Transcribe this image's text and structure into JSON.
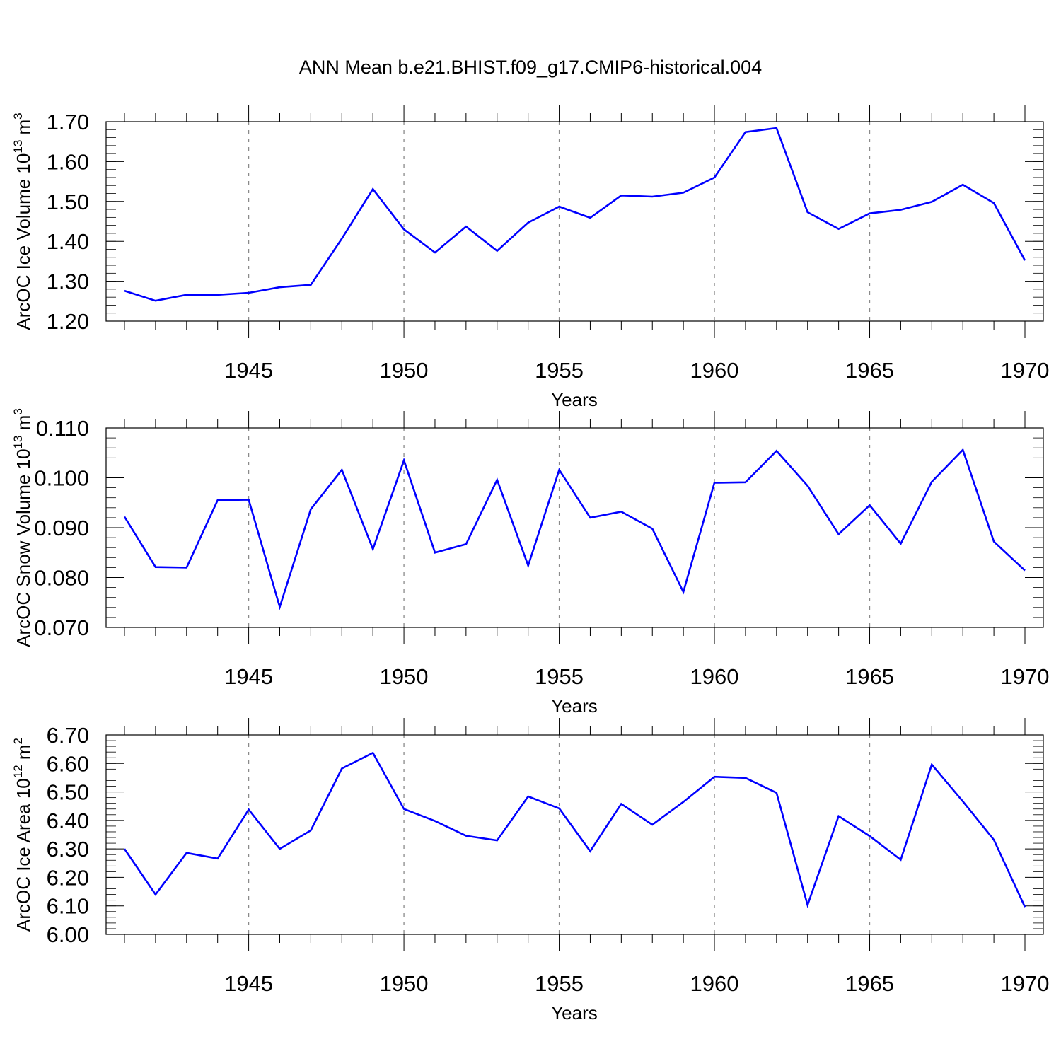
{
  "chart_data": [
    {
      "type": "line",
      "title": "ANN Mean b.e21.BHIST.f09_g17.CMIP6-historical.004",
      "ylabel": "ArcOC Ice Volume 10",
      "ylabel_exp": "13",
      "ylabel_unit": " m",
      "ylabel_unit_exp": "3",
      "xlabel": "Years",
      "xlim": [
        1941,
        1970
      ],
      "ylim": [
        1.2,
        1.7
      ],
      "yticks": [
        "1.20",
        "1.30",
        "1.40",
        "1.50",
        "1.60",
        "1.70"
      ],
      "xticks": [
        "1945",
        "1950",
        "1955",
        "1960",
        "1965",
        "1970"
      ],
      "grid": "vertical dashed at major x ticks",
      "line_color": "#0000ff",
      "x": [
        1941,
        1942,
        1943,
        1944,
        1945,
        1946,
        1947,
        1948,
        1949,
        1950,
        1951,
        1952,
        1953,
        1954,
        1955,
        1956,
        1957,
        1958,
        1959,
        1960,
        1961,
        1962,
        1963,
        1964,
        1965,
        1966,
        1967,
        1968,
        1969,
        1970
      ],
      "values": [
        1.276,
        1.251,
        1.266,
        1.266,
        1.271,
        1.285,
        1.291,
        1.407,
        1.531,
        1.43,
        1.372,
        1.437,
        1.376,
        1.447,
        1.487,
        1.459,
        1.515,
        1.512,
        1.522,
        1.56,
        1.674,
        1.684,
        1.473,
        1.431,
        1.47,
        1.479,
        1.499,
        1.542,
        1.496,
        1.352
      ]
    },
    {
      "type": "line",
      "title": "",
      "ylabel": "ArcOC Snow Volume 10",
      "ylabel_exp": "13",
      "ylabel_unit": " m",
      "ylabel_unit_exp": "3",
      "xlabel": "Years",
      "xlim": [
        1941,
        1970
      ],
      "ylim": [
        0.07,
        0.11
      ],
      "yticks": [
        "0.070",
        "0.080",
        "0.090",
        "0.100",
        "0.110"
      ],
      "xticks": [
        "1945",
        "1950",
        "1955",
        "1960",
        "1965",
        "1970"
      ],
      "grid": "vertical dashed at major x ticks",
      "line_color": "#0000ff",
      "x": [
        1941,
        1942,
        1943,
        1944,
        1945,
        1946,
        1947,
        1948,
        1949,
        1950,
        1951,
        1952,
        1953,
        1954,
        1955,
        1956,
        1957,
        1958,
        1959,
        1960,
        1961,
        1962,
        1963,
        1964,
        1965,
        1966,
        1967,
        1968,
        1969,
        1970
      ],
      "values": [
        0.0922,
        0.0821,
        0.082,
        0.0955,
        0.0956,
        0.0741,
        0.0937,
        0.1016,
        0.0857,
        0.1035,
        0.085,
        0.0867,
        0.0996,
        0.0824,
        0.1016,
        0.092,
        0.0932,
        0.0898,
        0.0771,
        0.099,
        0.0991,
        0.1054,
        0.0984,
        0.0887,
        0.0945,
        0.0868,
        0.0992,
        0.1056,
        0.0872,
        0.0814
      ]
    },
    {
      "type": "line",
      "title": "",
      "ylabel": "ArcOC Ice Area 10",
      "ylabel_exp": "12",
      "ylabel_unit": " m",
      "ylabel_unit_exp": "2",
      "xlabel": "Years",
      "xlim": [
        1941,
        1970
      ],
      "ylim": [
        6.0,
        6.7
      ],
      "yticks": [
        "6.00",
        "6.10",
        "6.20",
        "6.30",
        "6.40",
        "6.50",
        "6.60",
        "6.70"
      ],
      "xticks": [
        "1945",
        "1950",
        "1955",
        "1960",
        "1965",
        "1970"
      ],
      "grid": "vertical dashed at major x ticks",
      "line_color": "#0000ff",
      "x": [
        1941,
        1942,
        1943,
        1944,
        1945,
        1946,
        1947,
        1948,
        1949,
        1950,
        1951,
        1952,
        1953,
        1954,
        1955,
        1956,
        1957,
        1958,
        1959,
        1960,
        1961,
        1962,
        1963,
        1964,
        1965,
        1966,
        1967,
        1968,
        1969,
        1970
      ],
      "values": [
        6.3,
        6.14,
        6.286,
        6.266,
        6.438,
        6.3,
        6.365,
        6.582,
        6.637,
        6.44,
        6.398,
        6.346,
        6.33,
        6.484,
        6.442,
        6.292,
        6.458,
        6.385,
        6.465,
        6.553,
        6.549,
        6.497,
        6.103,
        6.415,
        6.345,
        6.262,
        6.596,
        6.467,
        6.332,
        6.096
      ]
    }
  ]
}
